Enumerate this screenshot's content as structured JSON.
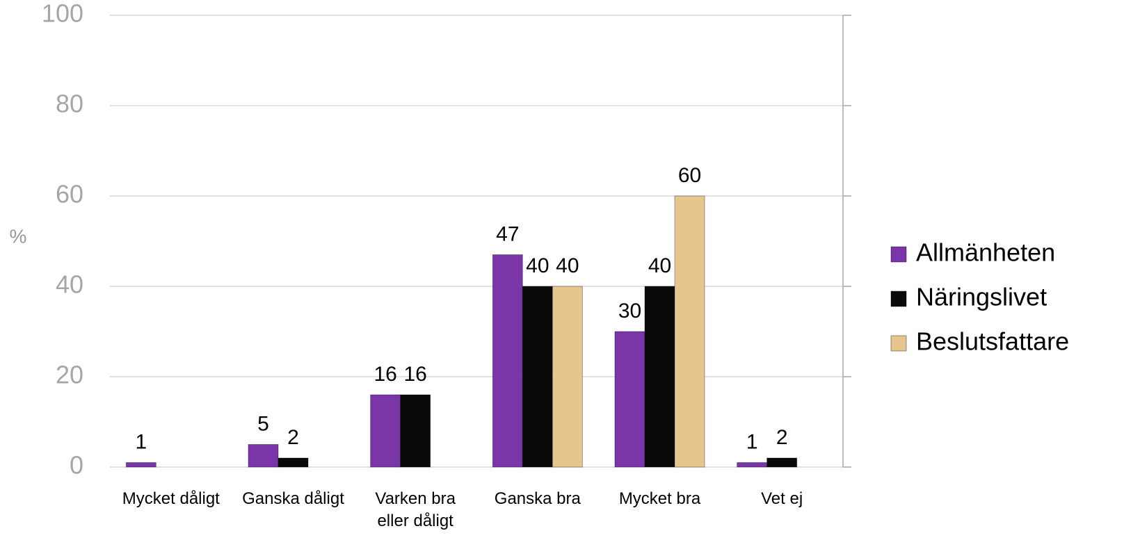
{
  "chart_data": {
    "type": "bar",
    "y_label": "%",
    "categories": [
      "Mycket dåligt",
      "Ganska dåligt",
      "Varken bra eller dåligt",
      "Ganska bra",
      "Mycket bra",
      "Vet ej"
    ],
    "series": [
      {
        "name": "Allmänheten",
        "color": "#7a35a8",
        "values": [
          1,
          5,
          16,
          47,
          30,
          1
        ]
      },
      {
        "name": "Näringslivet",
        "color": "#0a0a0a",
        "values": [
          null,
          2,
          16,
          40,
          40,
          2
        ]
      },
      {
        "name": "Beslutsfattare",
        "color": "#e6c68e",
        "values": [
          null,
          null,
          null,
          40,
          60,
          null
        ]
      }
    ],
    "ylim": [
      0,
      100
    ],
    "yticks": [
      0,
      20,
      40,
      60,
      80,
      100
    ],
    "grid": true,
    "legend": "right"
  }
}
